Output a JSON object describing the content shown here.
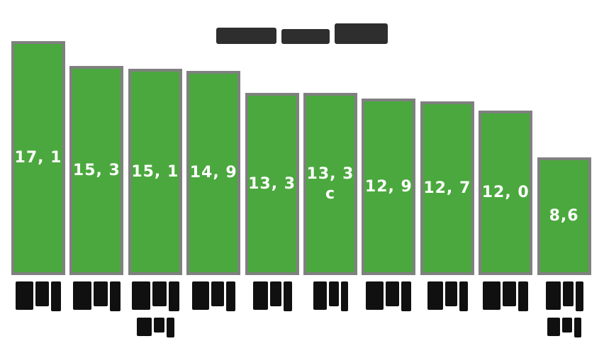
{
  "chart_data": {
    "type": "bar",
    "title": "",
    "title_illegible": true,
    "categories": [
      "",
      "",
      "",
      "",
      "",
      "",
      "",
      "",
      "",
      ""
    ],
    "x_tick_labels_illegible": true,
    "values": [
      17.1,
      15.3,
      15.1,
      14.9,
      13.3,
      13.3,
      12.9,
      12.7,
      12.0,
      8.6
    ],
    "value_labels": [
      [
        "17, 1"
      ],
      [
        "15, 3"
      ],
      [
        "15, 1"
      ],
      [
        "14, 9"
      ],
      [
        "13, 3"
      ],
      [
        "13, 3",
        "c"
      ],
      [
        "12, 9"
      ],
      [
        "12, 7"
      ],
      [
        "12, 0"
      ],
      [
        "8,6"
      ]
    ],
    "ylim": [
      0,
      17.5
    ],
    "grid": false,
    "legend": false,
    "background_color": "#FFFFFF",
    "bar_color": "#4BA83E",
    "bar_border_color": "#808080",
    "value_text_color": "#FFFFFF",
    "text_color": "#111111"
  },
  "illegible_marks": {
    "title_segments": [
      [
        85,
        23
      ],
      [
        68,
        21
      ],
      [
        75,
        29
      ]
    ],
    "x_tick_line_widths": [
      [
        66
      ],
      [
        70
      ],
      [
        70,
        56
      ],
      [
        64
      ],
      [
        58
      ],
      [
        52
      ],
      [
        66
      ],
      [
        60
      ],
      [
        66
      ],
      [
        56,
        50
      ]
    ]
  }
}
